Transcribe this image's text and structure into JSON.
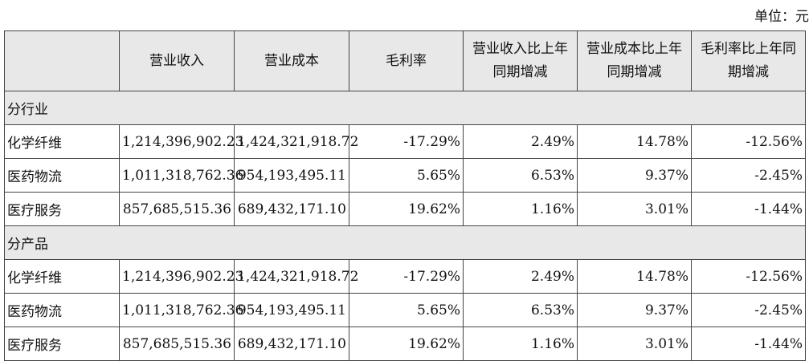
{
  "unit_label": "单位：元",
  "headers": [
    "",
    "营业收入",
    "营业成本",
    "毛利率",
    "营业收入比上年同期增减",
    "营业成本比上年同期增减",
    "毛利率比上年同期增减"
  ],
  "sections": [
    {
      "title": "分行业",
      "rows": [
        {
          "name": "化学纤维",
          "revenue": "1,214,396,902.23",
          "cost": "1,424,321,918.72",
          "margin": "-17.29%",
          "rev_change": "2.49%",
          "cost_change": "14.78%",
          "margin_change": "-12.56%"
        },
        {
          "name": "医药物流",
          "revenue": "1,011,318,762.36",
          "cost": "954,193,495.11",
          "margin": "5.65%",
          "rev_change": "6.53%",
          "cost_change": "9.37%",
          "margin_change": "-2.45%"
        },
        {
          "name": "医疗服务",
          "revenue": "857,685,515.36",
          "cost": "689,432,171.10",
          "margin": "19.62%",
          "rev_change": "1.16%",
          "cost_change": "3.01%",
          "margin_change": "-1.44%"
        }
      ]
    },
    {
      "title": "分产品",
      "rows": [
        {
          "name": "化学纤维",
          "revenue": "1,214,396,902.23",
          "cost": "1,424,321,918.72",
          "margin": "-17.29%",
          "rev_change": "2.49%",
          "cost_change": "14.78%",
          "margin_change": "-12.56%"
        },
        {
          "name": "医药物流",
          "revenue": "1,011,318,762.36",
          "cost": "954,193,495.11",
          "margin": "5.65%",
          "rev_change": "6.53%",
          "cost_change": "9.37%",
          "margin_change": "-2.45%"
        },
        {
          "name": "医疗服务",
          "revenue": "857,685,515.36",
          "cost": "689,432,171.10",
          "margin": "19.62%",
          "rev_change": "1.16%",
          "cost_change": "3.01%",
          "margin_change": "-1.44%"
        }
      ]
    }
  ]
}
